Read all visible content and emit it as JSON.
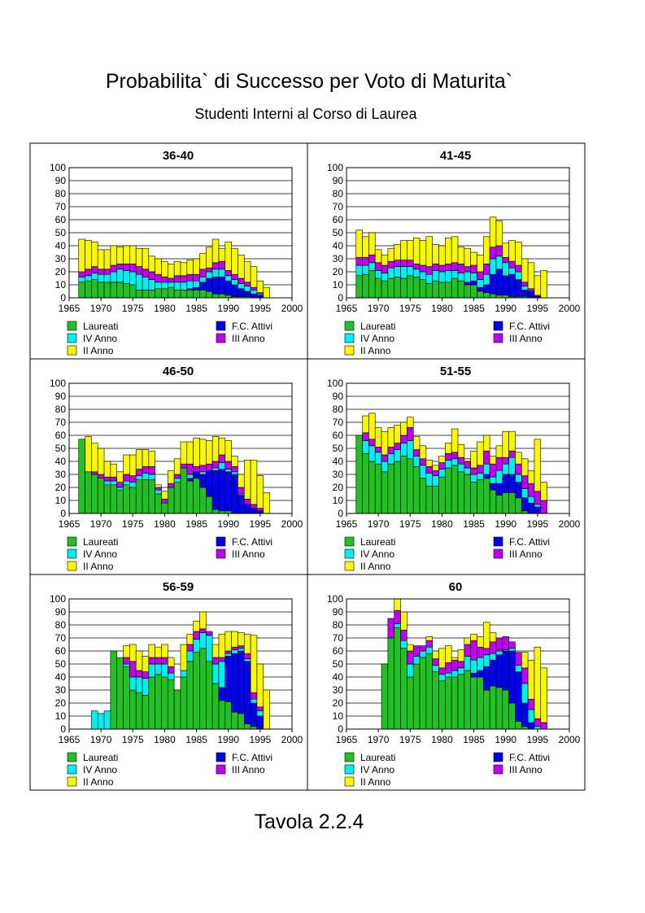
{
  "title": "Probabilita` di Successo per Voto di Maturita`",
  "subtitle": "Studenti Interni al Corso di Laurea",
  "footer": "Tavola 2.2.4",
  "chart_data": {
    "type": "bar",
    "stacked": true,
    "xlim": [
      1965,
      2000
    ],
    "x_ticks": [
      1965,
      1970,
      1975,
      1980,
      1985,
      1990,
      1995,
      2000
    ],
    "ylim": [
      0,
      100
    ],
    "y_ticks": [
      0,
      10,
      20,
      30,
      40,
      50,
      60,
      70,
      80,
      90,
      100
    ],
    "grid": true,
    "legend_position": "bottom",
    "series_meta": [
      {
        "key": "laureati",
        "name": "Laureati",
        "color": "#22c022"
      },
      {
        "key": "fc",
        "name": "F.C. Attivi",
        "color": "#0000f0"
      },
      {
        "key": "iv",
        "name": "IV Anno",
        "color": "#00f0f0"
      },
      {
        "key": "iii",
        "name": "III Anno",
        "color": "#c000f0"
      },
      {
        "key": "ii",
        "name": "II Anno",
        "color": "#f8f800"
      }
    ],
    "legend_order": [
      "laureati",
      "fc",
      "iv",
      "iii",
      "ii"
    ],
    "panels": [
      {
        "title": "36-40",
        "years": [
          1967,
          1968,
          1969,
          1970,
          1971,
          1972,
          1973,
          1974,
          1975,
          1976,
          1977,
          1978,
          1979,
          1980,
          1981,
          1982,
          1983,
          1984,
          1985,
          1986,
          1987,
          1988,
          1989,
          1990,
          1991,
          1992,
          1993,
          1994,
          1995,
          1996
        ],
        "laureati": [
          12,
          13,
          14,
          12,
          12,
          12,
          12,
          11,
          10,
          6,
          6,
          6,
          7,
          7,
          8,
          6,
          6,
          6,
          6,
          6,
          5,
          3,
          3,
          2,
          1,
          1,
          1,
          0,
          0,
          0
        ],
        "fc": [
          0,
          0,
          0,
          0,
          0,
          0,
          0,
          0,
          0,
          0,
          0,
          0,
          0,
          0,
          0,
          0,
          0,
          1,
          2,
          6,
          10,
          13,
          13,
          11,
          9,
          6,
          4,
          3,
          2,
          0
        ],
        "iv": [
          4,
          4,
          5,
          6,
          6,
          8,
          10,
          10,
          10,
          12,
          10,
          8,
          5,
          5,
          4,
          6,
          6,
          6,
          5,
          4,
          5,
          6,
          6,
          4,
          4,
          4,
          4,
          3,
          1,
          0
        ],
        "iii": [
          4,
          5,
          5,
          4,
          4,
          5,
          4,
          5,
          6,
          6,
          6,
          6,
          6,
          4,
          3,
          5,
          5,
          5,
          5,
          6,
          3,
          5,
          6,
          4,
          4,
          4,
          3,
          2,
          1,
          0
        ],
        "ii": [
          25,
          22,
          19,
          15,
          15,
          15,
          13,
          14,
          14,
          14,
          16,
          12,
          12,
          12,
          11,
          11,
          10,
          11,
          12,
          12,
          16,
          18,
          10,
          22,
          20,
          18,
          16,
          16,
          9,
          8
        ]
      },
      {
        "title": "41-45",
        "years": [
          1967,
          1968,
          1969,
          1970,
          1971,
          1972,
          1973,
          1974,
          1975,
          1976,
          1977,
          1978,
          1979,
          1980,
          1981,
          1982,
          1983,
          1984,
          1985,
          1986,
          1987,
          1988,
          1989,
          1990,
          1991,
          1992,
          1993,
          1994,
          1995,
          1996
        ],
        "laureati": [
          17,
          18,
          21,
          15,
          13,
          15,
          16,
          15,
          17,
          16,
          14,
          11,
          13,
          12,
          12,
          15,
          13,
          10,
          10,
          5,
          4,
          3,
          2,
          2,
          1,
          1,
          1,
          0,
          0,
          0
        ],
        "fc": [
          0,
          0,
          0,
          0,
          0,
          0,
          0,
          0,
          0,
          0,
          0,
          0,
          0,
          0,
          0,
          0,
          0,
          2,
          3,
          3,
          6,
          15,
          20,
          15,
          17,
          13,
          5,
          5,
          1,
          0
        ],
        "iv": [
          8,
          7,
          6,
          6,
          6,
          8,
          8,
          9,
          7,
          6,
          6,
          7,
          8,
          8,
          9,
          6,
          6,
          8,
          6,
          6,
          8,
          12,
          10,
          10,
          5,
          6,
          3,
          0,
          0,
          0
        ],
        "iii": [
          6,
          6,
          6,
          6,
          6,
          5,
          5,
          5,
          5,
          4,
          5,
          6,
          5,
          5,
          5,
          6,
          7,
          4,
          6,
          6,
          8,
          9,
          8,
          4,
          5,
          5,
          3,
          2,
          1,
          0
        ],
        "ii": [
          21,
          16,
          17,
          10,
          8,
          10,
          12,
          15,
          15,
          20,
          19,
          23,
          15,
          15,
          20,
          20,
          13,
          14,
          10,
          13,
          21,
          23,
          19,
          11,
          16,
          18,
          18,
          20,
          15,
          21
        ]
      },
      {
        "title": "46-50",
        "years": [
          1967,
          1968,
          1969,
          1970,
          1971,
          1972,
          1973,
          1974,
          1975,
          1976,
          1977,
          1978,
          1979,
          1980,
          1981,
          1982,
          1983,
          1984,
          1985,
          1986,
          1987,
          1988,
          1989,
          1990,
          1991,
          1992,
          1993,
          1994,
          1995,
          1996
        ],
        "laureati": [
          57,
          32,
          30,
          27,
          22,
          22,
          18,
          22,
          20,
          26,
          26,
          26,
          15,
          8,
          20,
          24,
          35,
          25,
          27,
          20,
          13,
          3,
          2,
          2,
          0,
          0,
          0,
          0,
          0,
          0
        ],
        "fc": [
          0,
          0,
          0,
          0,
          0,
          0,
          0,
          0,
          0,
          0,
          0,
          0,
          0,
          0,
          0,
          0,
          0,
          2,
          5,
          10,
          20,
          30,
          32,
          30,
          30,
          14,
          7,
          4,
          2,
          0
        ],
        "iv": [
          0,
          0,
          0,
          0,
          3,
          3,
          2,
          3,
          4,
          3,
          5,
          4,
          3,
          0,
          0,
          3,
          0,
          3,
          0,
          2,
          0,
          2,
          5,
          2,
          2,
          1,
          0,
          0,
          0,
          0
        ],
        "iii": [
          0,
          0,
          2,
          3,
          3,
          3,
          4,
          5,
          5,
          5,
          5,
          6,
          2,
          3,
          3,
          3,
          3,
          8,
          4,
          5,
          5,
          5,
          6,
          6,
          4,
          5,
          4,
          3,
          2,
          0
        ],
        "ii": [
          0,
          27,
          22,
          20,
          12,
          10,
          8,
          15,
          16,
          15,
          13,
          12,
          2,
          6,
          10,
          12,
          17,
          17,
          22,
          20,
          18,
          19,
          13,
          16,
          8,
          10,
          30,
          34,
          25,
          16
        ]
      },
      {
        "title": "51-55",
        "years": [
          1967,
          1968,
          1969,
          1970,
          1971,
          1972,
          1973,
          1974,
          1975,
          1976,
          1977,
          1978,
          1979,
          1980,
          1981,
          1982,
          1983,
          1984,
          1985,
          1986,
          1987,
          1988,
          1989,
          1990,
          1991,
          1992,
          1993,
          1994,
          1995,
          1996
        ],
        "laureati": [
          60,
          46,
          40,
          38,
          32,
          38,
          40,
          44,
          42,
          36,
          27,
          21,
          21,
          28,
          35,
          37,
          32,
          30,
          24,
          26,
          27,
          18,
          14,
          16,
          16,
          12,
          2,
          0,
          0,
          0
        ],
        "fc": [
          0,
          0,
          0,
          0,
          0,
          0,
          0,
          0,
          0,
          0,
          0,
          0,
          0,
          0,
          0,
          0,
          0,
          0,
          0,
          0,
          3,
          5,
          9,
          14,
          14,
          12,
          10,
          8,
          5,
          0
        ],
        "iv": [
          0,
          10,
          12,
          9,
          8,
          8,
          9,
          10,
          14,
          8,
          10,
          10,
          8,
          6,
          6,
          5,
          6,
          5,
          6,
          5,
          8,
          5,
          10,
          8,
          13,
          6,
          7,
          5,
          2,
          0
        ],
        "iii": [
          0,
          6,
          5,
          4,
          5,
          5,
          5,
          6,
          10,
          5,
          5,
          5,
          4,
          5,
          5,
          5,
          5,
          5,
          5,
          6,
          10,
          10,
          10,
          5,
          5,
          8,
          10,
          10,
          10,
          10
        ],
        "ii": [
          0,
          13,
          20,
          15,
          18,
          15,
          14,
          10,
          8,
          10,
          10,
          5,
          4,
          5,
          8,
          18,
          10,
          2,
          13,
          18,
          12,
          6,
          9,
          20,
          15,
          9,
          13,
          10,
          40,
          14
        ]
      },
      {
        "title": "56-59",
        "years": [
          1967,
          1968,
          1969,
          1970,
          1971,
          1972,
          1973,
          1974,
          1975,
          1976,
          1977,
          1978,
          1979,
          1980,
          1981,
          1982,
          1983,
          1984,
          1985,
          1986,
          1987,
          1988,
          1989,
          1990,
          1991,
          1992,
          1993,
          1994,
          1995,
          1996
        ],
        "laureati": [
          0,
          0,
          0,
          0,
          0,
          60,
          55,
          48,
          30,
          28,
          26,
          40,
          42,
          40,
          38,
          30,
          40,
          52,
          59,
          62,
          52,
          35,
          22,
          21,
          13,
          12,
          4,
          2,
          0,
          0
        ],
        "fc": [
          0,
          0,
          0,
          0,
          0,
          0,
          0,
          0,
          0,
          0,
          0,
          0,
          0,
          0,
          0,
          0,
          0,
          0,
          0,
          0,
          0,
          0,
          10,
          35,
          45,
          48,
          48,
          18,
          10,
          0
        ],
        "iv": [
          0,
          0,
          14,
          12,
          14,
          0,
          0,
          2,
          10,
          12,
          13,
          10,
          8,
          10,
          5,
          0,
          5,
          8,
          10,
          12,
          20,
          15,
          20,
          2,
          3,
          2,
          2,
          3,
          4,
          0
        ],
        "iii": [
          0,
          0,
          0,
          0,
          0,
          0,
          0,
          5,
          12,
          5,
          5,
          5,
          5,
          5,
          5,
          0,
          0,
          5,
          6,
          3,
          3,
          5,
          3,
          2,
          2,
          2,
          4,
          5,
          3,
          0
        ],
        "ii": [
          0,
          0,
          0,
          0,
          0,
          0,
          0,
          9,
          13,
          15,
          12,
          10,
          8,
          10,
          7,
          0,
          20,
          8,
          8,
          13,
          0,
          10,
          18,
          15,
          12,
          10,
          15,
          44,
          33,
          30
        ]
      },
      {
        "title": "60",
        "years": [
          1967,
          1968,
          1969,
          1970,
          1971,
          1972,
          1973,
          1974,
          1975,
          1976,
          1977,
          1978,
          1979,
          1980,
          1981,
          1982,
          1983,
          1984,
          1985,
          1986,
          1987,
          1988,
          1989,
          1990,
          1991,
          1992,
          1993,
          1994,
          1995,
          1996
        ],
        "laureati": [
          0,
          0,
          0,
          0,
          50,
          70,
          78,
          62,
          40,
          50,
          55,
          58,
          44,
          37,
          40,
          40,
          42,
          45,
          40,
          40,
          30,
          33,
          32,
          30,
          20,
          6,
          2,
          0,
          0,
          0
        ],
        "fc": [
          0,
          0,
          0,
          0,
          0,
          0,
          0,
          0,
          0,
          0,
          0,
          0,
          0,
          0,
          0,
          0,
          0,
          0,
          3,
          5,
          18,
          20,
          25,
          30,
          40,
          38,
          18,
          5,
          0,
          0
        ],
        "iv": [
          0,
          0,
          0,
          0,
          0,
          0,
          3,
          6,
          10,
          6,
          5,
          5,
          5,
          5,
          3,
          5,
          5,
          11,
          10,
          10,
          9,
          5,
          3,
          1,
          2,
          5,
          15,
          10,
          2,
          0
        ],
        "iii": [
          0,
          0,
          0,
          0,
          0,
          15,
          10,
          8,
          10,
          8,
          4,
          5,
          5,
          5,
          8,
          8,
          5,
          9,
          15,
          8,
          5,
          9,
          10,
          10,
          5,
          10,
          12,
          8,
          6,
          5
        ],
        "ii": [
          0,
          0,
          0,
          0,
          0,
          0,
          9,
          14,
          5,
          0,
          0,
          3,
          6,
          15,
          13,
          2,
          9,
          5,
          5,
          8,
          20,
          7,
          0,
          0,
          0,
          0,
          12,
          30,
          55,
          42
        ]
      }
    ]
  }
}
